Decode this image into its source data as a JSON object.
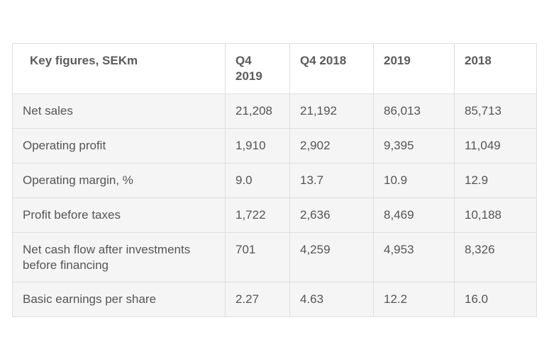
{
  "table": {
    "headers": [
      "Key figures, SEKm",
      "Q4\n2019",
      "Q4 2018",
      "2019",
      "2018"
    ],
    "rows": [
      [
        "Net sales",
        "21,208",
        "21,192",
        "86,013",
        "85,713"
      ],
      [
        "Operating profit",
        "1,910",
        "2,902",
        "9,395",
        "11,049"
      ],
      [
        "Operating margin, %",
        "9.0",
        "13.7",
        "10.9",
        "12.9"
      ],
      [
        "Profit before taxes",
        "1,722",
        "2,636",
        "8,469",
        "10,188"
      ],
      [
        "Net cash flow after investments before financing",
        "701",
        "4,259",
        "4,953",
        "8,326"
      ],
      [
        "Basic earnings per share",
        "2.27",
        "4.63",
        "12.2",
        "16.0"
      ]
    ]
  }
}
